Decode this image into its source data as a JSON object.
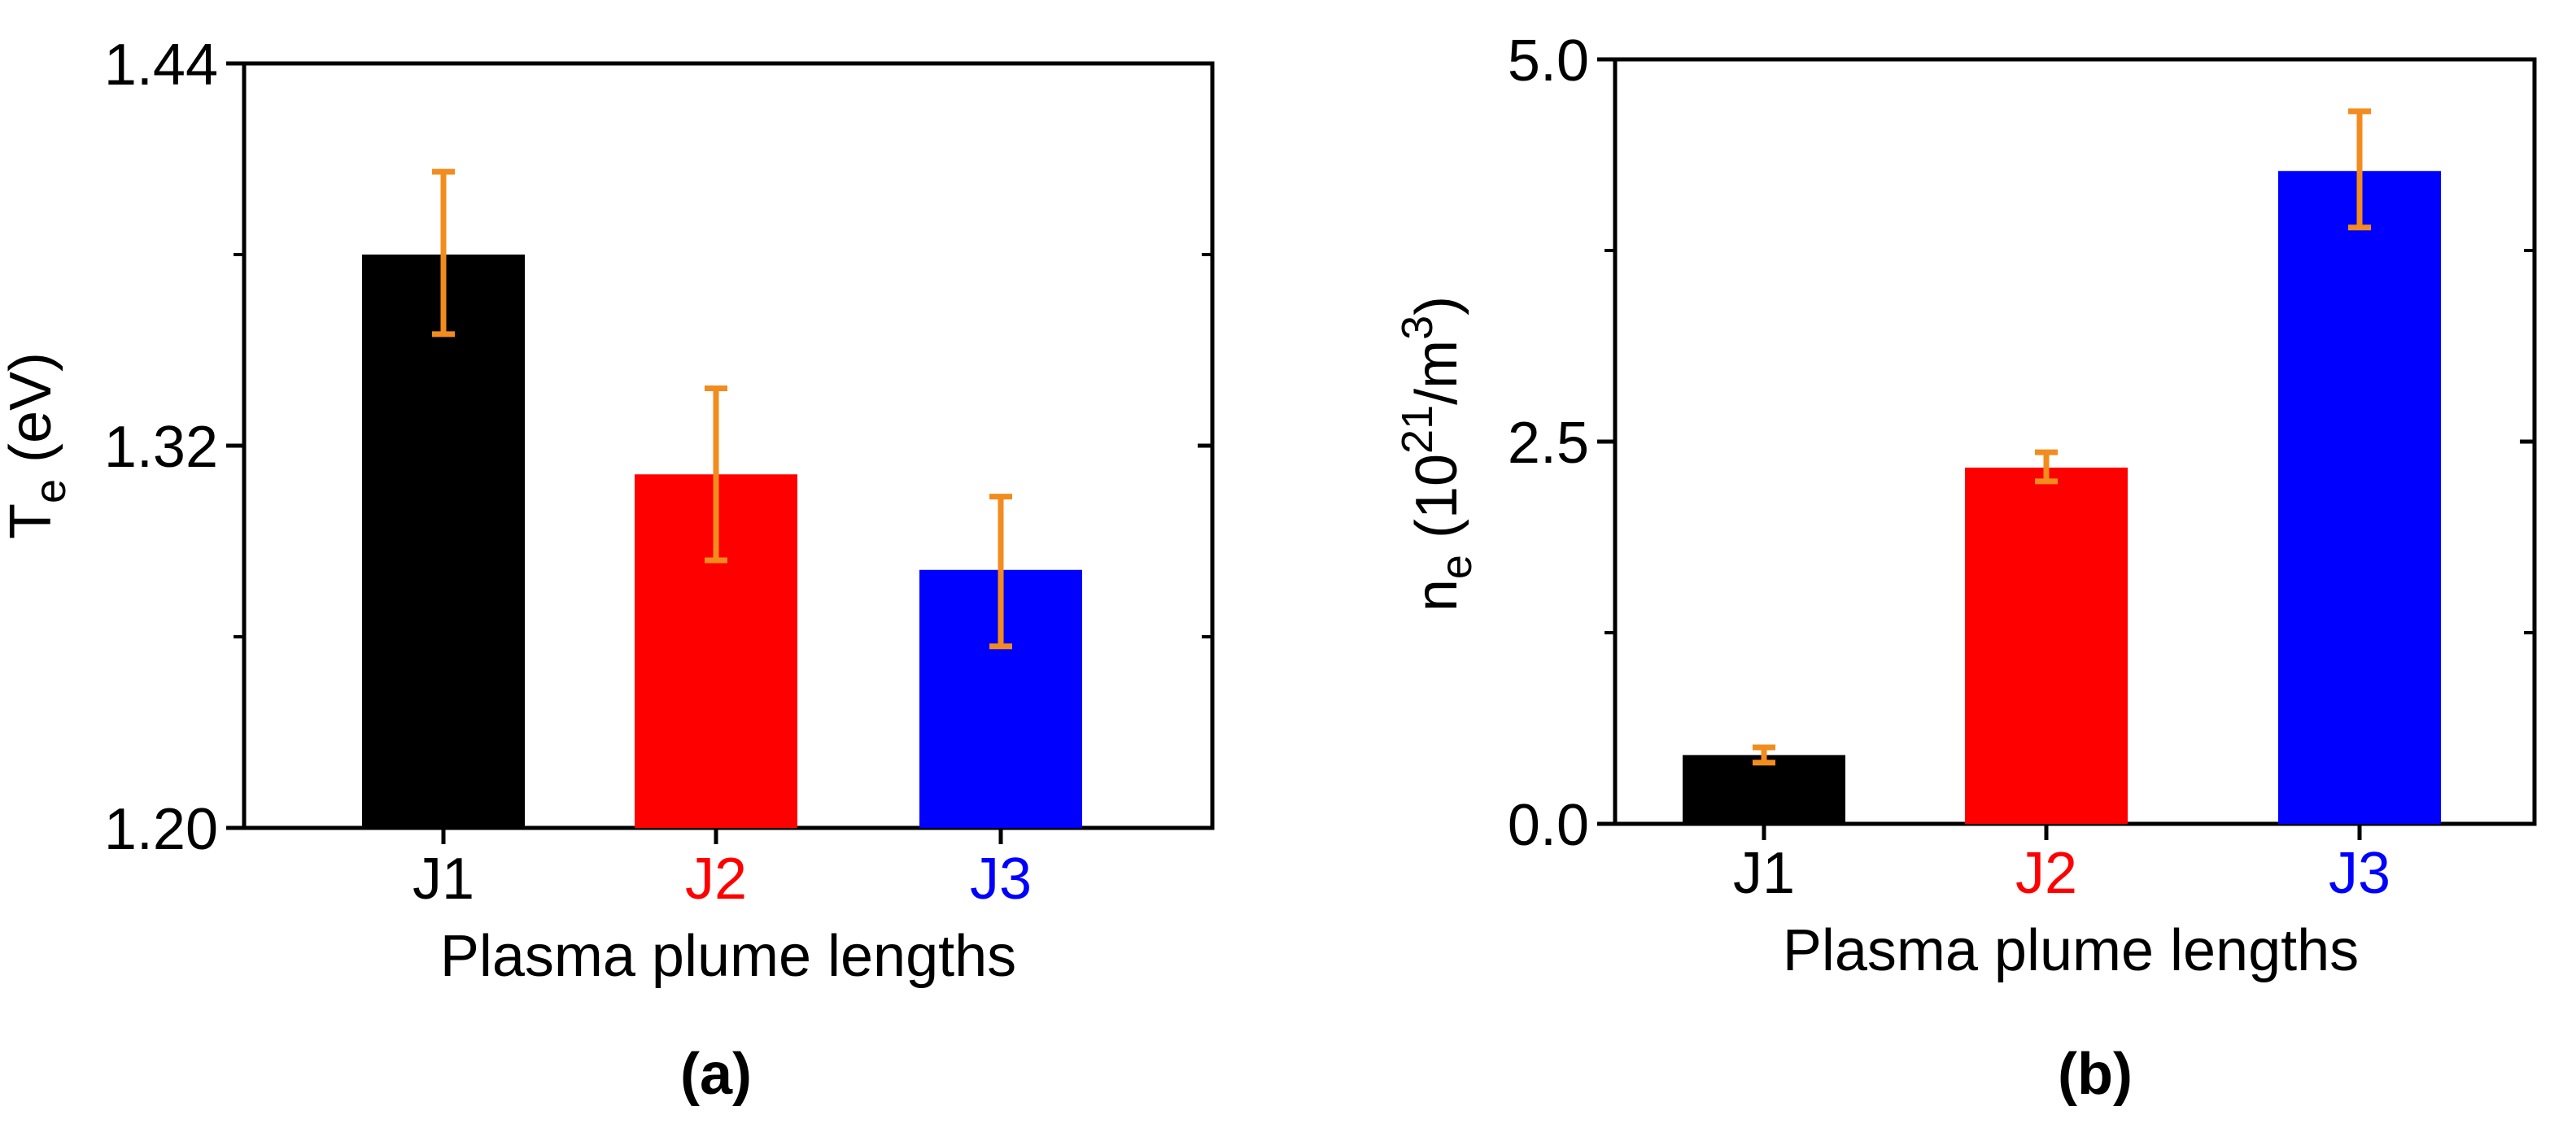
{
  "chart_data": [
    {
      "type": "bar",
      "panel_label": "(a)",
      "categories": [
        "J1",
        "J2",
        "J3"
      ],
      "category_colors": [
        "#000000",
        "#ff0000",
        "#0000ff"
      ],
      "bar_colors": [
        "#000000",
        "#ff0000",
        "#0000ff"
      ],
      "values": [
        1.38,
        1.311,
        1.281
      ],
      "errors_low": [
        1.355,
        1.284,
        1.257
      ],
      "errors_high": [
        1.406,
        1.338,
        1.304
      ],
      "error_color": "#f28c1e",
      "ylim": [
        1.2,
        1.44
      ],
      "yticks": [
        1.2,
        1.32,
        1.44
      ],
      "ytick_labels": [
        "1.20",
        "1.32",
        "1.44"
      ],
      "yminor_ticks": [
        1.26,
        1.38
      ],
      "ylabel_main": "T",
      "ylabel_sub": "e",
      "ylabel_unit": " (eV)",
      "xlabel": "Plasma plume lengths"
    },
    {
      "type": "bar",
      "panel_label": "(b)",
      "categories": [
        "J1",
        "J2",
        "J3"
      ],
      "category_colors": [
        "#000000",
        "#ff0000",
        "#0000ff"
      ],
      "bar_colors": [
        "#000000",
        "#ff0000",
        "#0000ff"
      ],
      "values": [
        0.45,
        2.33,
        4.27
      ],
      "errors_low": [
        0.4,
        2.24,
        3.9
      ],
      "errors_high": [
        0.5,
        2.43,
        4.66
      ],
      "error_color": "#f28c1e",
      "ylim": [
        0.0,
        5.0
      ],
      "yticks": [
        0.0,
        2.5,
        5.0
      ],
      "ytick_labels": [
        "0.0",
        "2.5",
        "5.0"
      ],
      "yminor_ticks": [
        1.25,
        3.75
      ],
      "ylabel_main": "n",
      "ylabel_sub": "e",
      "ylabel_unit_open": " (10",
      "ylabel_unit_exp": "21",
      "ylabel_unit_mid": "/m",
      "ylabel_unit_exp2": "3",
      "ylabel_unit_close": ")",
      "xlabel": "Plasma plume lengths"
    }
  ]
}
